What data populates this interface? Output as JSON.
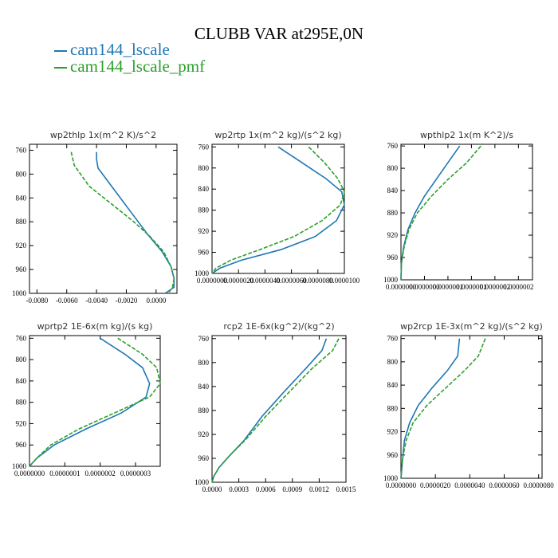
{
  "title": "CLUBB VAR at295E,0N",
  "legend": [
    {
      "label": "cam144_lscale",
      "color": "#1f77b4"
    },
    {
      "label": "cam144_lscale_pmf",
      "color": "#2ca02c"
    }
  ],
  "chart_data": [
    {
      "type": "line",
      "title": "wp2thlp   1x(m^2 K)/s^2",
      "xlim": [
        -0.0085,
        0.0014
      ],
      "ylim": [
        1000,
        750
      ],
      "yticks": [
        760,
        800,
        840,
        880,
        920,
        960,
        1000
      ],
      "xticks": [
        -0.008,
        -0.006,
        -0.004,
        -0.002,
        0.0
      ],
      "xtick_labels": [
        "-0.0080",
        "-0.0060",
        "-0.0040",
        "-0.0020",
        "0.0000"
      ],
      "series": [
        {
          "name": "cam144_lscale",
          "x": [
            -0.004,
            -0.004,
            -0.0039,
            -0.003,
            -0.0018,
            -0.0006,
            0.0004,
            0.001,
            0.0012,
            0.0012,
            0.0006
          ],
          "y": [
            763,
            775,
            790,
            820,
            860,
            900,
            930,
            955,
            975,
            990,
            1000
          ]
        },
        {
          "name": "cam144_lscale_pmf",
          "x": [
            -0.0057,
            -0.0055,
            -0.0045,
            -0.003,
            -0.0015,
            -0.0004,
            0.0005,
            0.001,
            0.0012,
            0.0011,
            0.0008
          ],
          "y": [
            763,
            785,
            820,
            850,
            880,
            905,
            930,
            955,
            975,
            990,
            1000
          ]
        }
      ]
    },
    {
      "type": "line",
      "title": "wp2rtp   1x(m^2 kg)/(s^2 kg)",
      "xlim": [
        0.0,
        1e-05
      ],
      "ylim": [
        1000,
        755
      ],
      "yticks": [
        760,
        800,
        840,
        880,
        920,
        960,
        1000
      ],
      "xticks": [
        0.0,
        2e-06,
        4e-06,
        6e-06,
        8e-06,
        1e-05
      ],
      "xtick_labels": [
        "0.0000000",
        "0.0000020",
        "0.0000040",
        "0.0000060",
        "0.0000080",
        "0.0000100"
      ],
      "series": [
        {
          "name": "cam144_lscale",
          "x": [
            5e-06,
            6.8e-06,
            8.6e-06,
            9.8e-06,
            1e-05,
            9.4e-06,
            7.8e-06,
            5.2e-06,
            2.2e-06,
            6e-07,
            0.0
          ],
          "y": [
            760,
            790,
            820,
            845,
            870,
            900,
            930,
            955,
            975,
            990,
            1000
          ]
        },
        {
          "name": "cam144_lscale_pmf",
          "x": [
            7.3e-06,
            8.5e-06,
            9.5e-06,
            1e-05,
            9.7e-06,
            8.3e-06,
            6.2e-06,
            3.6e-06,
            1.4e-06,
            3e-07,
            0.0
          ],
          "y": [
            760,
            790,
            820,
            845,
            870,
            900,
            930,
            955,
            975,
            990,
            1000
          ]
        }
      ]
    },
    {
      "type": "line",
      "title": "wpthlp2   1x(m K^2)/s",
      "xlim": [
        0.0,
        2.8e-07
      ],
      "ylim": [
        1000,
        757
      ],
      "yticks": [
        760,
        800,
        840,
        880,
        920,
        960,
        1000
      ],
      "xticks": [
        0.0,
        5e-08,
        1e-07,
        1.5e-07,
        2e-07,
        2.5e-07
      ],
      "xtick_labels": [
        "0.0000000",
        "0.0000000",
        "0.0000001",
        "0.0000001",
        "0.0000002",
        "0.0000002"
      ],
      "series": [
        {
          "name": "cam144_lscale",
          "x": [
            1.25e-07,
            1e-07,
            7.5e-08,
            5e-08,
            3e-08,
            1.5e-08,
            6e-09,
            1e-09,
            0.0
          ],
          "y": [
            760,
            790,
            820,
            850,
            880,
            910,
            940,
            970,
            1000
          ]
        },
        {
          "name": "cam144_lscale_pmf",
          "x": [
            1.7e-07,
            1.4e-07,
            1e-07,
            6.5e-08,
            3.5e-08,
            1.7e-08,
            7e-09,
            1e-09,
            0.0
          ],
          "y": [
            760,
            790,
            820,
            850,
            880,
            910,
            940,
            970,
            1000
          ]
        }
      ]
    },
    {
      "type": "line",
      "title": "wprtp2   1E-6x(m kg)/(s kg)",
      "xlim": [
        0.0,
        3.7e-07
      ],
      "ylim": [
        1000,
        755
      ],
      "yticks": [
        760,
        800,
        840,
        880,
        920,
        960,
        1000
      ],
      "xticks": [
        0.0,
        1e-07,
        2e-07,
        3e-07
      ],
      "xtick_labels": [
        "0.0000000",
        "0.0000001",
        "0.0000002",
        "0.0000003"
      ],
      "series": [
        {
          "name": "cam144_lscale",
          "x": [
            2e-07,
            2.7e-07,
            3.2e-07,
            3.4e-07,
            3.3e-07,
            2.6e-07,
            1.6e-07,
            7e-08,
            2e-08,
            0.0
          ],
          "y": [
            760,
            790,
            815,
            845,
            870,
            900,
            930,
            960,
            985,
            1000
          ]
        },
        {
          "name": "cam144_lscale_pmf",
          "x": [
            2.5e-07,
            3.2e-07,
            3.6e-07,
            3.7e-07,
            3.4e-07,
            2.4e-07,
            1.4e-07,
            6e-08,
            2e-08,
            0.0
          ],
          "y": [
            760,
            790,
            815,
            845,
            870,
            900,
            930,
            960,
            985,
            1000
          ]
        }
      ]
    },
    {
      "type": "line",
      "title": "rcp2   1E-6x(kg^2)/(kg^2)",
      "xlim": [
        0.0,
        0.0015
      ],
      "ylim": [
        1000,
        755
      ],
      "yticks": [
        760,
        800,
        840,
        880,
        920,
        960,
        1000
      ],
      "xticks": [
        0.0,
        0.0003,
        0.0006,
        0.0009,
        0.0012,
        0.0015
      ],
      "xtick_labels": [
        "0.0000",
        "0.0003",
        "0.0006",
        "0.0009",
        "0.0012",
        "0.0015"
      ],
      "series": [
        {
          "name": "cam144_lscale",
          "x": [
            0.00128,
            0.00123,
            0.00105,
            0.0008,
            0.00056,
            0.00036,
            0.0002,
            8e-05,
            2e-05,
            0.0
          ],
          "y": [
            760,
            780,
            810,
            850,
            890,
            930,
            955,
            975,
            990,
            1000
          ]
        },
        {
          "name": "cam144_lscale_pmf",
          "x": [
            0.00142,
            0.00135,
            0.00112,
            0.00086,
            0.0006,
            0.00037,
            0.0002,
            8e-05,
            2e-05,
            0.0
          ],
          "y": [
            760,
            780,
            810,
            850,
            890,
            930,
            955,
            975,
            990,
            1000
          ]
        }
      ]
    },
    {
      "type": "line",
      "title": "wp2rcp   1E-3x(m^2 kg)/(s^2 kg)",
      "xlim": [
        0.0,
        8.2e-06
      ],
      "ylim": [
        1000,
        755
      ],
      "yticks": [
        760,
        800,
        840,
        880,
        920,
        960,
        1000
      ],
      "xticks": [
        0.0,
        2e-06,
        4e-06,
        6e-06,
        8e-06
      ],
      "xtick_labels": [
        "0.0000000",
        "0.0000020",
        "0.0000040",
        "0.0000060",
        "0.0000080"
      ],
      "series": [
        {
          "name": "cam144_lscale",
          "x": [
            3.4e-06,
            3.3e-06,
            2.7e-06,
            1.8e-06,
            1e-06,
            5e-07,
            2e-07,
            1e-07,
            0.0
          ],
          "y": [
            760,
            790,
            815,
            845,
            875,
            905,
            935,
            965,
            1000
          ]
        },
        {
          "name": "cam144_lscale_pmf",
          "x": [
            4.9e-06,
            4.5e-06,
            3.7e-06,
            2.6e-06,
            1.5e-06,
            7e-07,
            3e-07,
            1e-07,
            0.0
          ],
          "y": [
            760,
            790,
            815,
            845,
            875,
            905,
            935,
            965,
            1000
          ]
        }
      ]
    }
  ]
}
